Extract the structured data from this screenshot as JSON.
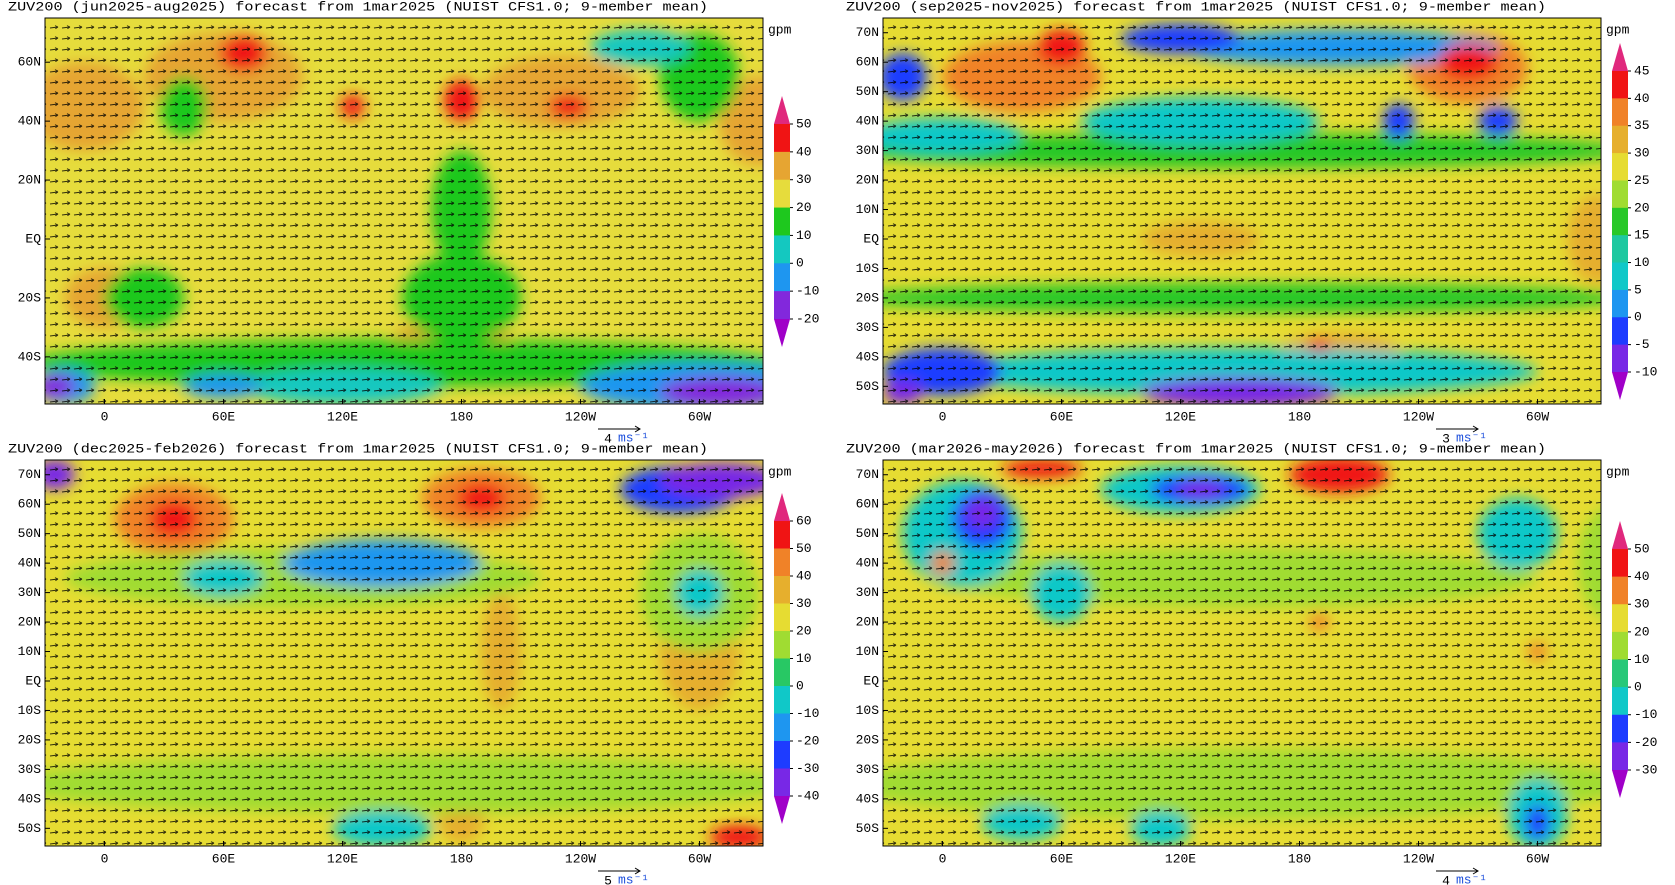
{
  "panels": [
    {
      "title": "ZUV200 (jun2025-aug2025) forecast from 1mar2025 (NUIST CFS1.0; 9-member mean)",
      "lat_labels": [
        "60N",
        "40N",
        "20N",
        "EQ",
        "20S",
        "40S"
      ],
      "lon_labels": [
        "0",
        "60E",
        "120E",
        "180",
        "120W",
        "60W"
      ],
      "colorbar": {
        "unit": "gpm",
        "labels": [
          "50",
          "40",
          "30",
          "20",
          "10",
          "0",
          "-10",
          "-20"
        ],
        "colors": [
          "#e0287d",
          "#f01414",
          "#e6a532",
          "#e6dc3c",
          "#1ec81e",
          "#14c8c0",
          "#1e96f0",
          "#8228dc",
          "#a000c8"
        ]
      },
      "vector_ref": {
        "value": "4",
        "unit": "ms⁻¹"
      }
    },
    {
      "title": "ZUV200 (sep2025-nov2025) forecast from 1mar2025 (NUIST CFS1.0; 9-member mean)",
      "lat_labels": [
        "70N",
        "60N",
        "50N",
        "40N",
        "30N",
        "20N",
        "10N",
        "EQ",
        "10S",
        "20S",
        "30S",
        "40S",
        "50S"
      ],
      "lon_labels": [
        "0",
        "60E",
        "120E",
        "180",
        "120W",
        "60W"
      ],
      "colorbar": {
        "unit": "gpm",
        "labels": [
          "45",
          "40",
          "35",
          "30",
          "25",
          "20",
          "15",
          "10",
          "5",
          "0",
          "-5",
          "-10"
        ],
        "colors": [
          "#e0287d",
          "#f01414",
          "#f08228",
          "#e6af2d",
          "#e6dc32",
          "#a0dc32",
          "#28c828",
          "#1ec8a0",
          "#10c8c8",
          "#1e96f0",
          "#1e3cff",
          "#7828e6",
          "#a000c8"
        ]
      },
      "vector_ref": {
        "value": "3",
        "unit": "ms⁻¹"
      }
    },
    {
      "title": "ZUV200 (dec2025-feb2026) forecast from 1mar2025 (NUIST CFS1.0; 9-member mean)",
      "lat_labels": [
        "70N",
        "60N",
        "50N",
        "40N",
        "30N",
        "20N",
        "10N",
        "EQ",
        "10S",
        "20S",
        "30S",
        "40S",
        "50S"
      ],
      "lon_labels": [
        "0",
        "60E",
        "120E",
        "180",
        "120W",
        "60W"
      ],
      "colorbar": {
        "unit": "gpm",
        "labels": [
          "60",
          "50",
          "40",
          "30",
          "20",
          "10",
          "0",
          "-10",
          "-20",
          "-30",
          "-40"
        ],
        "colors": [
          "#e0287d",
          "#f01414",
          "#f08228",
          "#e6af2d",
          "#e6dc32",
          "#a0dc32",
          "#28c864",
          "#10c8c8",
          "#1e96f0",
          "#1e3cff",
          "#7828e6",
          "#a000c8"
        ]
      },
      "vector_ref": {
        "value": "5",
        "unit": "ms⁻¹"
      }
    },
    {
      "title": "ZUV200 (mar2026-may2026) forecast from 1mar2025 (NUIST CFS1.0; 9-member mean)",
      "lat_labels": [
        "70N",
        "60N",
        "50N",
        "40N",
        "30N",
        "20N",
        "10N",
        "EQ",
        "10S",
        "20S",
        "30S",
        "40S",
        "50S"
      ],
      "lon_labels": [
        "0",
        "60E",
        "120E",
        "180",
        "120W",
        "60W"
      ],
      "colorbar": {
        "unit": "gpm",
        "labels": [
          "50",
          "40",
          "30",
          "20",
          "10",
          "0",
          "-10",
          "-20",
          "-30"
        ],
        "colors": [
          "#e0287d",
          "#f01414",
          "#f08228",
          "#e6dc32",
          "#a0dc32",
          "#28c878",
          "#10c8c8",
          "#1e3cff",
          "#7828e6",
          "#a000c8"
        ]
      },
      "vector_ref": {
        "value": "4",
        "unit": "ms⁻¹"
      }
    }
  ]
}
